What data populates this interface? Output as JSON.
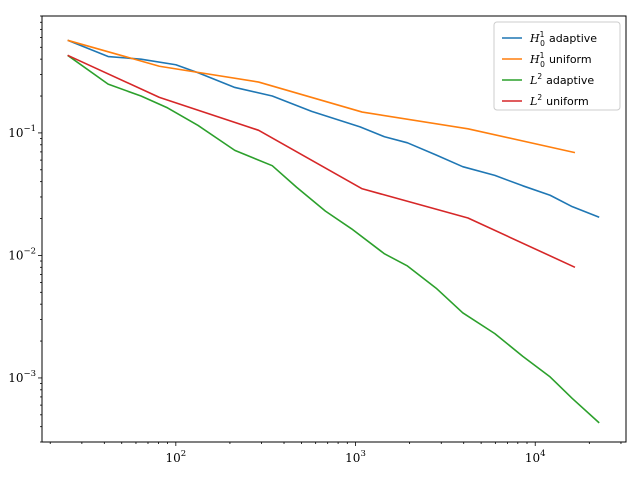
{
  "chart_data": {
    "type": "line",
    "title": "",
    "xlabel": "",
    "ylabel": "",
    "x_scale": "log",
    "y_scale": "log",
    "xlim": [
      18,
      32000
    ],
    "ylim": [
      0.0003,
      0.9
    ],
    "grid": false,
    "legend_position": "upper right",
    "x_ticks": [
      {
        "value": 100,
        "base": "10",
        "exp": "2"
      },
      {
        "value": 1000,
        "base": "10",
        "exp": "3"
      },
      {
        "value": 10000,
        "base": "10",
        "exp": "4"
      }
    ],
    "y_ticks": [
      {
        "value": 0.001,
        "base": "10",
        "exp": "−3"
      },
      {
        "value": 0.01,
        "base": "10",
        "exp": "−2"
      },
      {
        "value": 0.1,
        "base": "10",
        "exp": "−1"
      }
    ],
    "series": [
      {
        "name": "adaptive",
        "legend_math": {
          "base": "H",
          "sup": "1",
          "sub": "0"
        },
        "color": "#1f77b4",
        "x": [
          25,
          42,
          64,
          100,
          133,
          213,
          344,
          570,
          1060,
          1450,
          1945,
          2810,
          3950,
          5960,
          8530,
          12100,
          16070,
          22700
        ],
        "y": [
          0.57,
          0.42,
          0.4,
          0.36,
          0.31,
          0.235,
          0.2,
          0.15,
          0.112,
          0.093,
          0.083,
          0.066,
          0.053,
          0.045,
          0.037,
          0.031,
          0.025,
          0.0205
        ]
      },
      {
        "name": "uniform",
        "legend_math": {
          "base": "H",
          "sup": "1",
          "sub": "0"
        },
        "color": "#ff7f0e",
        "x": [
          25,
          81,
          289,
          1089,
          4225,
          16641
        ],
        "y": [
          0.57,
          0.35,
          0.26,
          0.148,
          0.108,
          0.069
        ]
      },
      {
        "name": "adaptive",
        "legend_math": {
          "base": "L",
          "sup": "2",
          "sub": ""
        },
        "color": "#2ca02c",
        "x": [
          25,
          42,
          64,
          90,
          133,
          213,
          344,
          470,
          680,
          950,
          1450,
          1945,
          2810,
          3950,
          5960,
          8530,
          12100,
          16070,
          22700
        ],
        "y": [
          0.43,
          0.25,
          0.2,
          0.16,
          0.115,
          0.072,
          0.054,
          0.036,
          0.023,
          0.0165,
          0.0103,
          0.0082,
          0.0054,
          0.0034,
          0.0023,
          0.0015,
          0.00102,
          0.00068,
          0.00043
        ]
      },
      {
        "name": "uniform",
        "legend_math": {
          "base": "L",
          "sup": "2",
          "sub": ""
        },
        "color": "#d62728",
        "x": [
          25,
          81,
          289,
          1089,
          4225,
          16641
        ],
        "y": [
          0.43,
          0.195,
          0.105,
          0.035,
          0.0202,
          0.008
        ]
      }
    ]
  }
}
